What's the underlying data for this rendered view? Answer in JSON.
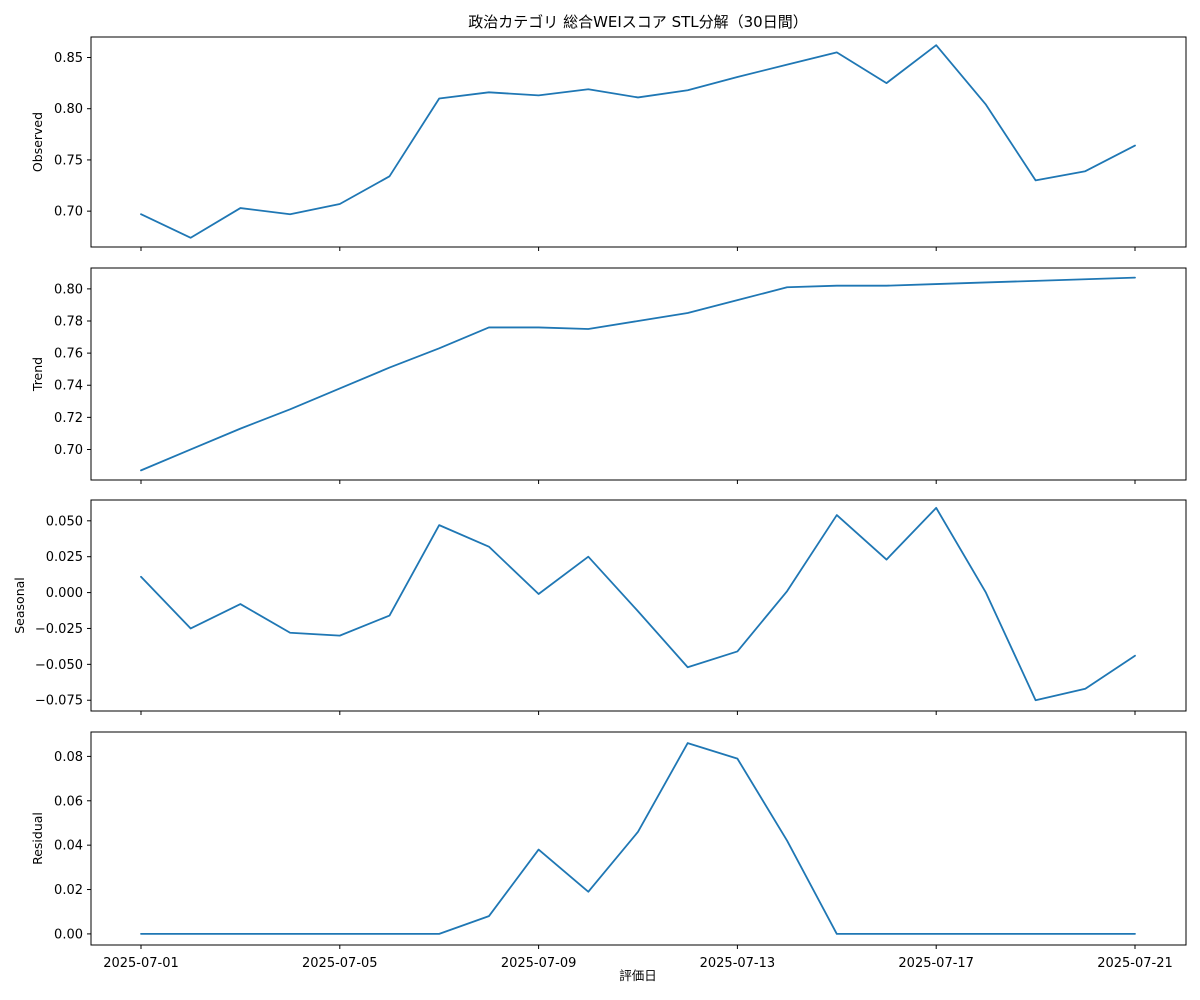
{
  "chart_data": {
    "type": "line",
    "title": "政治カテゴリ 総合WEIスコア STL分解（30日間）",
    "xlabel": "評価日",
    "line_color": "#1f77b4",
    "x": [
      "2025-07-01",
      "2025-07-02",
      "2025-07-03",
      "2025-07-04",
      "2025-07-05",
      "2025-07-06",
      "2025-07-07",
      "2025-07-08",
      "2025-07-09",
      "2025-07-10",
      "2025-07-11",
      "2025-07-12",
      "2025-07-13",
      "2025-07-14",
      "2025-07-15",
      "2025-07-16",
      "2025-07-17",
      "2025-07-18",
      "2025-07-19",
      "2025-07-20",
      "2025-07-21"
    ],
    "x_tick_labels": [
      "2025-07-01",
      "2025-07-05",
      "2025-07-09",
      "2025-07-13",
      "2025-07-17",
      "2025-07-21"
    ],
    "panels": [
      {
        "ylabel": "Observed",
        "ylim": [
          0.665,
          0.87
        ],
        "yticks": [
          0.7,
          0.75,
          0.8,
          0.85
        ],
        "ytick_labels": [
          "0.70",
          "0.75",
          "0.80",
          "0.85"
        ],
        "values": [
          0.697,
          0.674,
          0.703,
          0.697,
          0.707,
          0.734,
          0.81,
          0.816,
          0.813,
          0.819,
          0.811,
          0.818,
          0.831,
          0.843,
          0.855,
          0.825,
          0.862,
          0.804,
          0.73,
          0.739,
          0.764
        ]
      },
      {
        "ylabel": "Trend",
        "ylim": [
          0.681,
          0.813
        ],
        "yticks": [
          0.7,
          0.72,
          0.74,
          0.76,
          0.78,
          0.8
        ],
        "ytick_labels": [
          "0.70",
          "0.72",
          "0.74",
          "0.76",
          "0.78",
          "0.80"
        ],
        "values": [
          0.687,
          0.7,
          0.713,
          0.725,
          0.738,
          0.751,
          0.763,
          0.776,
          0.776,
          0.775,
          0.78,
          0.785,
          0.793,
          0.801,
          0.802,
          0.802,
          0.803,
          0.804,
          0.805,
          0.806,
          0.807
        ]
      },
      {
        "ylabel": "Seasonal",
        "ylim": [
          -0.0825,
          0.0645
        ],
        "yticks": [
          -0.075,
          -0.05,
          -0.025,
          0.0,
          0.025,
          0.05
        ],
        "ytick_labels": [
          "−0.075",
          "−0.050",
          "−0.025",
          "0.000",
          "0.025",
          "0.050"
        ],
        "values": [
          0.011,
          -0.025,
          -0.008,
          -0.028,
          -0.03,
          -0.016,
          0.047,
          0.032,
          -0.001,
          0.025,
          -0.013,
          -0.052,
          -0.041,
          0.001,
          0.054,
          0.023,
          0.059,
          0.0,
          -0.075,
          -0.067,
          -0.044
        ]
      },
      {
        "ylabel": "Residual",
        "ylim": [
          -0.005,
          0.091
        ],
        "yticks": [
          0.0,
          0.02,
          0.04,
          0.06,
          0.08
        ],
        "ytick_labels": [
          "0.00",
          "0.02",
          "0.04",
          "0.06",
          "0.08"
        ],
        "values": [
          0,
          0,
          0,
          0,
          0,
          0,
          0,
          0.008,
          0.038,
          0.019,
          0.046,
          0.086,
          0.079,
          0.042,
          0,
          0,
          0,
          0,
          0,
          0,
          0
        ]
      }
    ],
    "grid": false,
    "legend": "none"
  }
}
